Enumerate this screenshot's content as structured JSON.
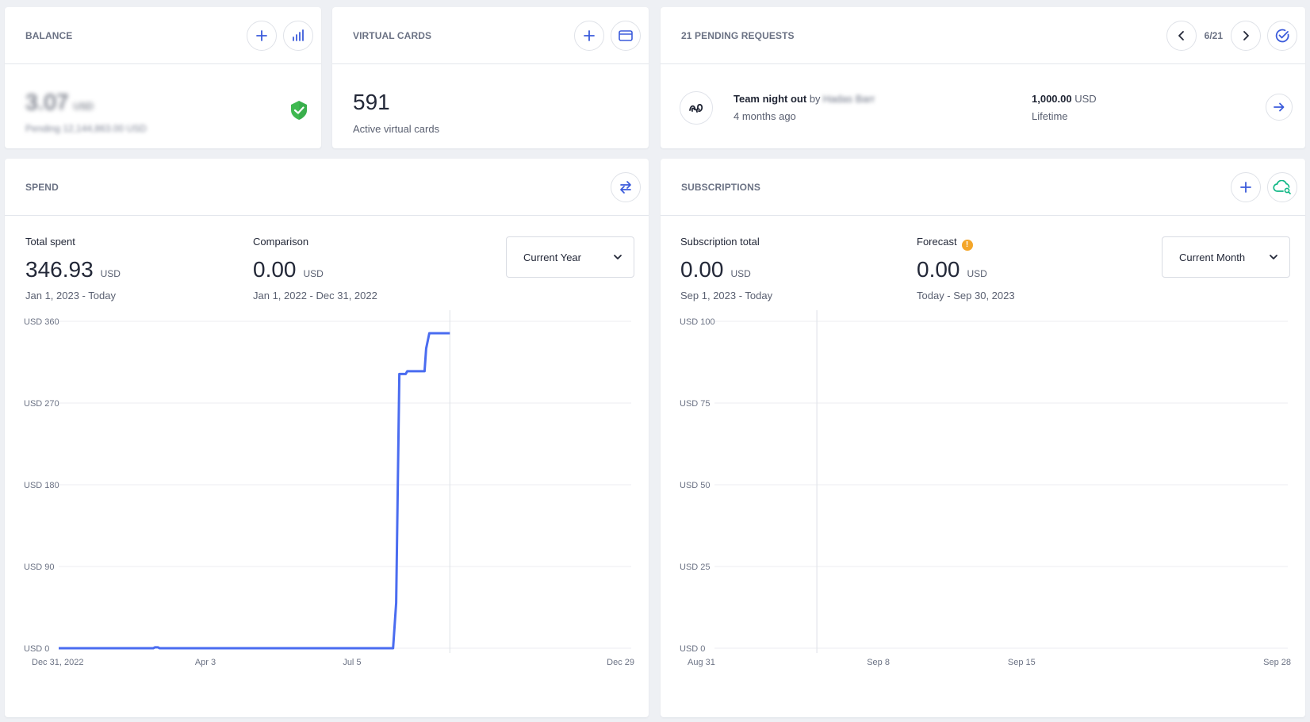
{
  "colors": {
    "accent": "#3b5bdb",
    "line": "#4a6cf0",
    "shield": "#3fb950",
    "warning": "#f4a62a",
    "teal": "#12b886"
  },
  "balance": {
    "title": "BALANCE",
    "amount": "3.07",
    "currency": "USD",
    "pending": "Pending 12,144,863.00 USD",
    "icons": [
      "plus-icon",
      "bar-chart-icon",
      "shield-check-icon"
    ]
  },
  "virtual_cards": {
    "title": "VIRTUAL CARDS",
    "count": "591",
    "label": "Active virtual cards",
    "icons": [
      "plus-icon",
      "credit-card-icon"
    ]
  },
  "pending": {
    "title": "21 PENDING REQUESTS",
    "pager": "6/21",
    "request": {
      "name": "Team night out",
      "by": "by",
      "requester": "Hadas Barr",
      "time": "4 months ago",
      "amount": "1,000.00",
      "currency": "USD",
      "period": "Lifetime"
    },
    "icons": [
      "chevron-left-icon",
      "chevron-right-icon",
      "check-circle-icon",
      "arrow-right-icon"
    ]
  },
  "spend": {
    "title": "SPEND",
    "total_label": "Total spent",
    "total_value": "346.93",
    "total_currency": "USD",
    "total_range": "Jan 1, 2023 - Today",
    "comparison_label": "Comparison",
    "comparison_value": "0.00",
    "comparison_currency": "USD",
    "comparison_range": "Jan 1, 2022 - Dec 31, 2022",
    "period_select": "Current Year",
    "icons": [
      "swap-arrows-icon",
      "chevron-down-icon"
    ]
  },
  "subscriptions": {
    "title": "SUBSCRIPTIONS",
    "total_label": "Subscription total",
    "total_value": "0.00",
    "total_currency": "USD",
    "total_range": "Sep 1, 2023 - Today",
    "forecast_label": "Forecast",
    "forecast_value": "0.00",
    "forecast_currency": "USD",
    "forecast_range": "Today - Sep 30, 2023",
    "period_select": "Current Month",
    "icons": [
      "plus-icon",
      "cloud-search-icon",
      "warning-icon",
      "chevron-down-icon"
    ]
  },
  "chart_data": [
    {
      "type": "line",
      "xlabel": "",
      "ylabel": "",
      "ylim": [
        0,
        360
      ],
      "yticks": [
        "USD 0",
        "USD 90",
        "USD 180",
        "USD 270",
        "USD 360"
      ],
      "yvalues": [
        0,
        90,
        180,
        270,
        360
      ],
      "xticks": [
        "Dec 31, 2022",
        "Apr 3",
        "Jul 5",
        "Dec 29"
      ],
      "x_domain_days": [
        0,
        363
      ],
      "xtick_days": [
        0,
        93,
        186,
        363
      ],
      "today_marker_day": 248,
      "grid": true,
      "series": [
        {
          "points_day_value": [
            [
              0,
              0
            ],
            [
              60,
              0
            ],
            [
              61,
              1
            ],
            [
              63,
              1
            ],
            [
              64,
              0
            ],
            [
              212,
              0
            ],
            [
              214,
              50
            ],
            [
              216,
              302
            ],
            [
              220,
              302
            ],
            [
              221,
              305
            ],
            [
              232,
              305
            ],
            [
              233,
              330
            ],
            [
              235,
              346.93
            ],
            [
              248,
              346.93
            ]
          ]
        }
      ]
    },
    {
      "type": "line",
      "xlabel": "",
      "ylabel": "",
      "ylim": [
        0,
        100
      ],
      "yticks": [
        "USD 0",
        "USD 25",
        "USD 50",
        "USD 75",
        "USD 100"
      ],
      "yvalues": [
        0,
        25,
        50,
        75,
        100
      ],
      "xticks": [
        "Aug 31",
        "Sep 8",
        "Sep 15",
        "Sep 28"
      ],
      "x_domain_days": [
        0,
        28
      ],
      "xtick_days": [
        0,
        8,
        15,
        28
      ],
      "today_marker_day": 5,
      "grid": true,
      "series": []
    }
  ]
}
